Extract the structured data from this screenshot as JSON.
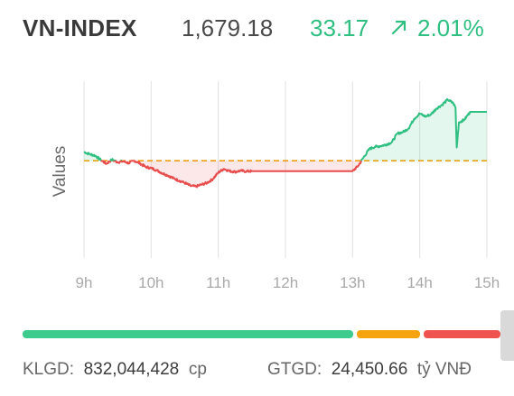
{
  "index": {
    "name": "VN-INDEX",
    "value": "1,679.18",
    "change": "33.17",
    "change_pct": "2.01%",
    "direction_icon": "arrow-up-right-icon",
    "up_color": "#2fbf80"
  },
  "chart_data": {
    "type": "line",
    "ylabel": "Values",
    "x_ticks": [
      "9h",
      "10h",
      "11h",
      "12h",
      "13h",
      "14h",
      "15h"
    ],
    "reference_value": 1646.01,
    "ylim": [
      1580,
      1700
    ],
    "grid": "vertical",
    "colors": {
      "up": "#2fbf80",
      "down": "#e84b4b",
      "reference": "#f2a20c"
    },
    "series": [
      {
        "points": [
          [
            "9h00",
            1652.0
          ],
          [
            "9h05",
            1650.5
          ],
          [
            "9h10",
            1649.5
          ],
          [
            "9h15",
            1646.5
          ],
          [
            "9h20",
            1644.0
          ],
          [
            "9h25",
            1646.8
          ],
          [
            "9h30",
            1645.0
          ],
          [
            "9h35",
            1645.6
          ],
          [
            "9h40",
            1644.4
          ],
          [
            "9h45",
            1646.0
          ],
          [
            "9h50",
            1644.2
          ],
          [
            "9h55",
            1641.8
          ],
          [
            "10h00",
            1641.0
          ],
          [
            "10h05",
            1639.5
          ],
          [
            "10h10",
            1637.5
          ],
          [
            "10h15",
            1636.0
          ],
          [
            "10h20",
            1634.0
          ],
          [
            "10h25",
            1632.5
          ],
          [
            "10h30",
            1631.0
          ],
          [
            "10h35",
            1629.0
          ],
          [
            "10h40",
            1628.5
          ],
          [
            "10h45",
            1629.8
          ],
          [
            "10h50",
            1631.0
          ],
          [
            "10h55",
            1633.5
          ],
          [
            "11h00",
            1638.0
          ],
          [
            "11h05",
            1640.5
          ],
          [
            "11h10",
            1639.0
          ],
          [
            "11h15",
            1638.5
          ],
          [
            "11h20",
            1639.2
          ],
          [
            "11h25",
            1638.8
          ],
          [
            "11h30",
            1638.9
          ],
          [
            "13h00",
            1638.9
          ],
          [
            "13h05",
            1642.5
          ],
          [
            "13h10",
            1648.5
          ],
          [
            "13h15",
            1654.0
          ],
          [
            "13h20",
            1655.5
          ],
          [
            "13h25",
            1656.0
          ],
          [
            "13h30",
            1657.0
          ],
          [
            "13h35",
            1658.5
          ],
          [
            "13h40",
            1664.5
          ],
          [
            "13h45",
            1665.5
          ],
          [
            "13h50",
            1668.0
          ],
          [
            "13h55",
            1674.5
          ],
          [
            "14h00",
            1678.0
          ],
          [
            "14h05",
            1676.0
          ],
          [
            "14h10",
            1677.5
          ],
          [
            "14h15",
            1681.5
          ],
          [
            "14h20",
            1684.0
          ],
          [
            "14h25",
            1687.5
          ],
          [
            "14h30",
            1685.0
          ],
          [
            "14h32",
            1682.0
          ],
          [
            "14h33",
            1655.0
          ],
          [
            "14h35",
            1672.0
          ],
          [
            "14h40",
            1674.0
          ],
          [
            "14h45",
            1679.18
          ],
          [
            "15h00",
            1679.18
          ]
        ]
      }
    ]
  },
  "breadth": {
    "segments": [
      {
        "name": "advancing",
        "share": 0.7,
        "color": "#3ecc8c"
      },
      {
        "name": "unchanged",
        "share": 0.14,
        "color": "#f5a30f"
      },
      {
        "name": "declining",
        "share": 0.16,
        "color": "#ef5350"
      }
    ]
  },
  "stats": {
    "klgd_label": "KLGD:",
    "klgd_value": "832,044,428",
    "klgd_unit": "cp",
    "gtgd_label": "GTGD:",
    "gtgd_value": "24,450.66",
    "gtgd_unit": "tỷ VNĐ"
  }
}
